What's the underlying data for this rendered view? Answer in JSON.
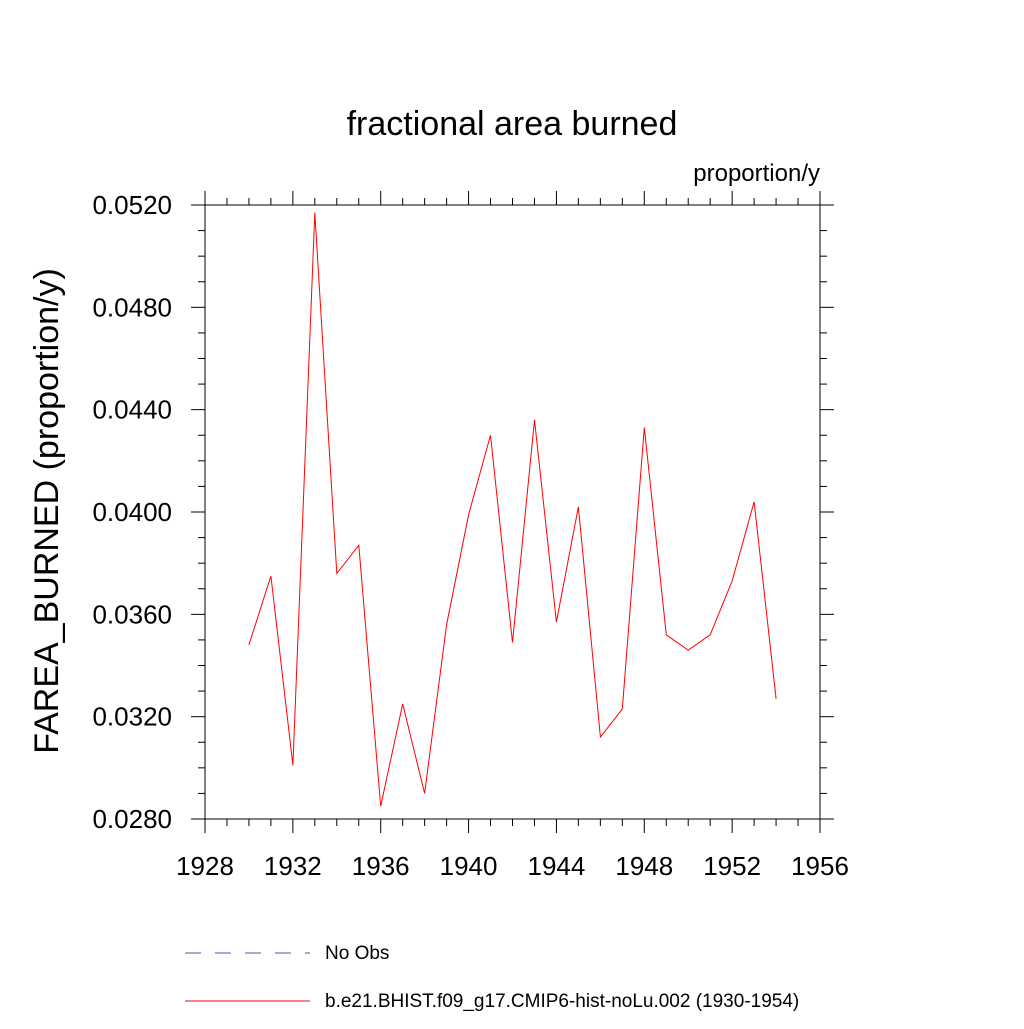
{
  "chart_data": {
    "type": "line",
    "title": "fractional area burned",
    "subtitle": "proportion/y",
    "ylabel": "FAREA_BURNED  (proportion/y)",
    "xlabel": "",
    "xlim": [
      1928,
      1956
    ],
    "ylim": [
      0.028,
      0.052
    ],
    "x_ticks": [
      "1928",
      "1932",
      "1936",
      "1940",
      "1944",
      "1948",
      "1952",
      "1956"
    ],
    "y_ticks": [
      "0.0280",
      "0.0320",
      "0.0360",
      "0.0400",
      "0.0440",
      "0.0480",
      "0.0520"
    ],
    "grid": false,
    "legend_position": "bottom",
    "series": [
      {
        "name": "b.e21.BHIST.f09_g17.CMIP6-hist-noLu.002 (1930-1954)",
        "color": "#ff0000",
        "x": [
          1930,
          1931,
          1932,
          1933,
          1934,
          1935,
          1936,
          1937,
          1938,
          1939,
          1940,
          1941,
          1942,
          1943,
          1944,
          1945,
          1946,
          1947,
          1948,
          1949,
          1950,
          1951,
          1952,
          1953,
          1954
        ],
        "y": [
          0.0348,
          0.0375,
          0.0301,
          0.0517,
          0.0376,
          0.0387,
          0.0285,
          0.0325,
          0.029,
          0.0356,
          0.0399,
          0.043,
          0.0349,
          0.0436,
          0.0357,
          0.0402,
          0.0312,
          0.0323,
          0.0433,
          0.0352,
          0.0346,
          0.0352,
          0.0373,
          0.0404,
          0.0327
        ]
      }
    ],
    "legend": [
      {
        "label": "No Obs",
        "color": "#5a50a8",
        "style": "dashed"
      },
      {
        "label": "b.e21.BHIST.f09_g17.CMIP6-hist-noLu.002 (1930-1954)",
        "color": "#ff0000",
        "style": "solid"
      }
    ]
  }
}
